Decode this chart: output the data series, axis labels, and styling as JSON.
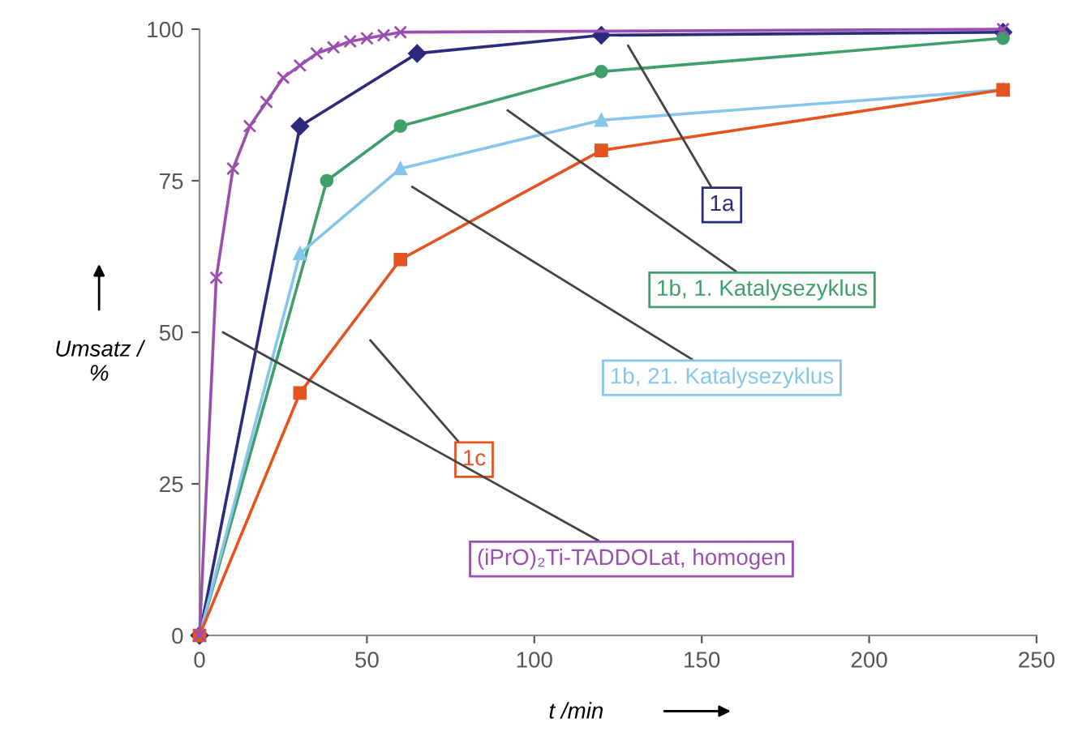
{
  "chart_data": {
    "type": "line",
    "xlabel": "t /min",
    "ylabel": "Umsatz /\n%",
    "xlim": [
      0,
      250
    ],
    "xticks": [
      0,
      50,
      100,
      150,
      200,
      250
    ],
    "ylim": [
      0,
      100
    ],
    "yticks": [
      0,
      25,
      50,
      75,
      100
    ],
    "grid": false,
    "legend": false,
    "series": [
      {
        "name": "1a",
        "color": "#2b2a7c",
        "marker": "diamond",
        "x": [
          0,
          30,
          65,
          120,
          240
        ],
        "values": [
          0,
          84,
          96,
          99,
          99.5
        ]
      },
      {
        "name": "1b, 1. Katalysezyklus",
        "color": "#3f9f6a",
        "marker": "circle",
        "x": [
          0,
          38,
          60,
          120,
          240
        ],
        "values": [
          0,
          75,
          84,
          93,
          98.5
        ]
      },
      {
        "name": "1b, 21. Katalysezyklus",
        "color": "#86c6ea",
        "marker": "triangle",
        "x": [
          0,
          30,
          60,
          120,
          240
        ],
        "values": [
          0,
          63,
          77,
          85,
          90
        ]
      },
      {
        "name": "1c",
        "color": "#e5531f",
        "marker": "square",
        "x": [
          0,
          30,
          60,
          120,
          240
        ],
        "values": [
          0,
          40,
          62,
          80,
          90
        ]
      },
      {
        "name": "(iPrO)₂Ti-TADDOLat, homogen",
        "color": "#9a4fae",
        "marker": "cross",
        "x": [
          0,
          5,
          10,
          15,
          20,
          25,
          30,
          35,
          40,
          45,
          50,
          55,
          60,
          240
        ],
        "values": [
          0,
          59,
          77,
          84,
          88,
          92,
          94,
          96,
          97,
          98,
          98.5,
          99,
          99.5,
          100
        ]
      }
    ]
  }
}
